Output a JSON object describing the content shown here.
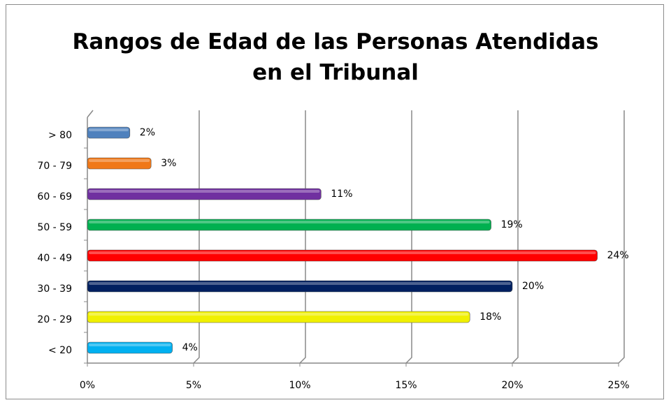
{
  "chart_data": {
    "type": "bar",
    "orientation": "horizontal",
    "title": "Rangos de Edad de las Personas Atendidas en el Tribunal",
    "categories": [
      "< 20",
      "20 - 29",
      "30 - 39",
      "40 - 49",
      "50 - 59",
      "60 - 69",
      "70 - 79",
      "> 80"
    ],
    "values": [
      4,
      18,
      20,
      24,
      19,
      11,
      3,
      2
    ],
    "value_labels": [
      "4%",
      "18%",
      "20%",
      "24%",
      "19%",
      "11%",
      "3%",
      "2%"
    ],
    "colors": [
      "#00b0f0",
      "#f0f000",
      "#002060",
      "#ff0000",
      "#00b050",
      "#7030a0",
      "#f07818",
      "#4f81bd"
    ],
    "xlim": [
      0,
      25
    ],
    "xticks": [
      {
        "value": 0,
        "label": "0%"
      },
      {
        "value": 5,
        "label": "5%"
      },
      {
        "value": 10,
        "label": "10%"
      },
      {
        "value": 15,
        "label": "15%"
      },
      {
        "value": 20,
        "label": "20%"
      },
      {
        "value": 25,
        "label": "25%"
      }
    ],
    "grid": true
  }
}
